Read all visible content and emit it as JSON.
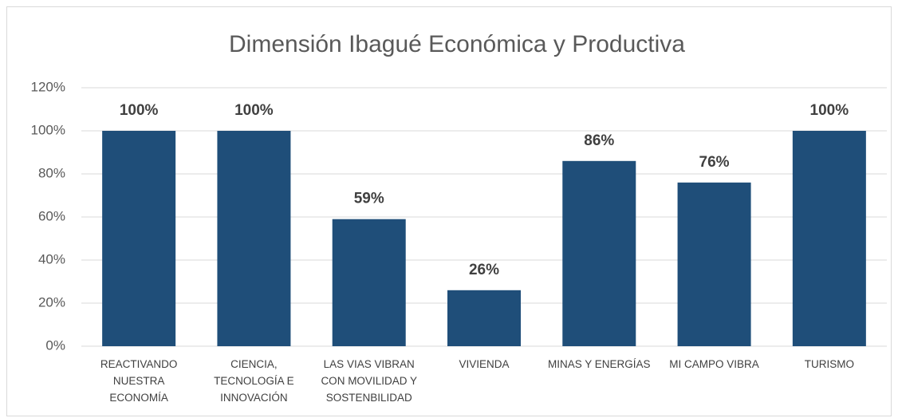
{
  "chart_data": {
    "type": "bar",
    "title": "Dimensión Ibagué Económica y Productiva",
    "categories": [
      "REACTIVANDO NUESTRA ECONOMÍA",
      "CIENCIA, TECNOLOGÍA E INNOVACIÓN",
      "LAS VIAS VIBRAN CON MOVILIDAD Y SOSTENBILIDAD",
      "VIVIENDA",
      "MINAS Y ENERGÍAS",
      "MI CAMPO VIBRA",
      "TURISMO"
    ],
    "values": [
      100,
      100,
      59,
      26,
      86,
      76,
      100
    ],
    "value_labels": [
      "100%",
      "100%",
      "59%",
      "26%",
      "86%",
      "76%",
      "100%"
    ],
    "color": "#1f4e79",
    "ylim": [
      0,
      120
    ],
    "yticks": [
      {
        "value": 0,
        "label": "0%"
      },
      {
        "value": 20,
        "label": "20%"
      },
      {
        "value": 40,
        "label": "40%"
      },
      {
        "value": 60,
        "label": "60%"
      },
      {
        "value": 80,
        "label": "80%"
      },
      {
        "value": 100,
        "label": "100%"
      },
      {
        "value": 120,
        "label": "120%"
      }
    ],
    "grid": true
  }
}
